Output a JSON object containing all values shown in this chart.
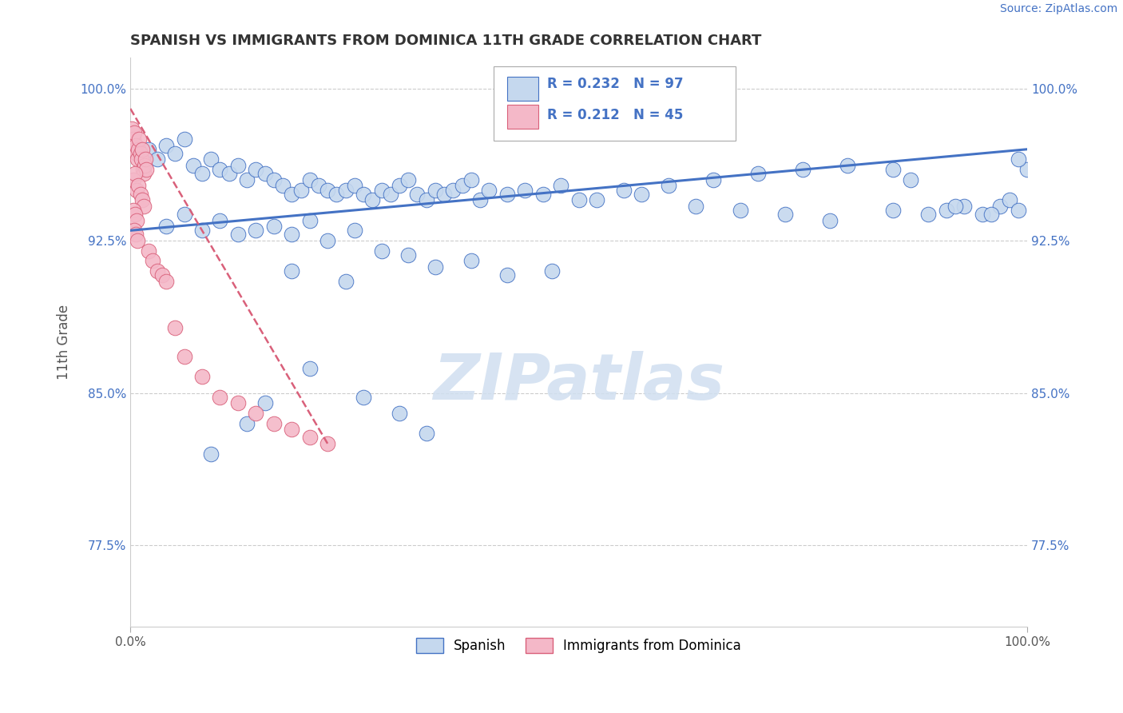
{
  "title": "SPANISH VS IMMIGRANTS FROM DOMINICA 11TH GRADE CORRELATION CHART",
  "source": "Source: ZipAtlas.com",
  "ylabel": "11th Grade",
  "xlim": [
    0.0,
    1.0
  ],
  "ylim": [
    0.735,
    1.015
  ],
  "xtick_positions": [
    0.0,
    1.0
  ],
  "xtick_labels": [
    "0.0%",
    "100.0%"
  ],
  "ytick_values": [
    0.775,
    0.85,
    0.925,
    1.0
  ],
  "ytick_labels": [
    "77.5%",
    "85.0%",
    "92.5%",
    "100.0%"
  ],
  "R_spanish": 0.232,
  "N_spanish": 97,
  "R_dominica": 0.212,
  "N_dominica": 45,
  "blue_fill": "#c5d8ee",
  "blue_edge": "#4472c4",
  "pink_fill": "#f4b8c8",
  "pink_edge": "#d9607a",
  "blue_trend": "#4472c4",
  "pink_trend": "#d9607a",
  "grid_color": "#cccccc",
  "watermark_color": "#d0dff0",
  "legend_blue": "Spanish",
  "legend_pink": "Immigrants from Dominica",
  "spanish_x": [
    0.02,
    0.03,
    0.04,
    0.05,
    0.06,
    0.07,
    0.08,
    0.09,
    0.1,
    0.11,
    0.12,
    0.13,
    0.14,
    0.15,
    0.16,
    0.17,
    0.18,
    0.19,
    0.2,
    0.21,
    0.22,
    0.23,
    0.24,
    0.25,
    0.26,
    0.27,
    0.28,
    0.29,
    0.3,
    0.31,
    0.32,
    0.33,
    0.34,
    0.35,
    0.36,
    0.37,
    0.38,
    0.39,
    0.4,
    0.42,
    0.44,
    0.46,
    0.48,
    0.5,
    0.55,
    0.6,
    0.65,
    0.7,
    0.75,
    0.8,
    0.85,
    0.87,
    0.89,
    0.91,
    0.93,
    0.95,
    0.97,
    0.98,
    0.99,
    1.0,
    0.04,
    0.06,
    0.08,
    0.1,
    0.12,
    0.14,
    0.16,
    0.18,
    0.2,
    0.22,
    0.25,
    0.28,
    0.31,
    0.34,
    0.38,
    0.42,
    0.47,
    0.18,
    0.24,
    0.3,
    0.2,
    0.26,
    0.33,
    0.15,
    0.09,
    0.13,
    0.52,
    0.57,
    0.63,
    0.68,
    0.73,
    0.78,
    0.85,
    0.92,
    0.96,
    0.99
  ],
  "spanish_y": [
    0.97,
    0.965,
    0.972,
    0.968,
    0.975,
    0.962,
    0.958,
    0.965,
    0.96,
    0.958,
    0.962,
    0.955,
    0.96,
    0.958,
    0.955,
    0.952,
    0.948,
    0.95,
    0.955,
    0.952,
    0.95,
    0.948,
    0.95,
    0.952,
    0.948,
    0.945,
    0.95,
    0.948,
    0.952,
    0.955,
    0.948,
    0.945,
    0.95,
    0.948,
    0.95,
    0.952,
    0.955,
    0.945,
    0.95,
    0.948,
    0.95,
    0.948,
    0.952,
    0.945,
    0.95,
    0.952,
    0.955,
    0.958,
    0.96,
    0.962,
    0.96,
    0.955,
    0.938,
    0.94,
    0.942,
    0.938,
    0.942,
    0.945,
    0.94,
    0.96,
    0.932,
    0.938,
    0.93,
    0.935,
    0.928,
    0.93,
    0.932,
    0.928,
    0.935,
    0.925,
    0.93,
    0.92,
    0.918,
    0.912,
    0.915,
    0.908,
    0.91,
    0.91,
    0.905,
    0.84,
    0.862,
    0.848,
    0.83,
    0.845,
    0.82,
    0.835,
    0.945,
    0.948,
    0.942,
    0.94,
    0.938,
    0.935,
    0.94,
    0.942,
    0.938,
    0.965
  ],
  "dominica_x": [
    0.002,
    0.003,
    0.004,
    0.005,
    0.006,
    0.007,
    0.008,
    0.009,
    0.01,
    0.011,
    0.012,
    0.013,
    0.014,
    0.015,
    0.016,
    0.017,
    0.018,
    0.003,
    0.005,
    0.007,
    0.009,
    0.011,
    0.013,
    0.015,
    0.003,
    0.005,
    0.007,
    0.004,
    0.006,
    0.008,
    0.02,
    0.025,
    0.03,
    0.035,
    0.04,
    0.05,
    0.06,
    0.08,
    0.1,
    0.12,
    0.14,
    0.16,
    0.18,
    0.2,
    0.22
  ],
  "dominica_y": [
    0.98,
    0.975,
    0.978,
    0.97,
    0.972,
    0.968,
    0.965,
    0.97,
    0.975,
    0.968,
    0.965,
    0.97,
    0.96,
    0.958,
    0.962,
    0.965,
    0.96,
    0.955,
    0.958,
    0.95,
    0.952,
    0.948,
    0.945,
    0.942,
    0.94,
    0.938,
    0.935,
    0.93,
    0.928,
    0.925,
    0.92,
    0.915,
    0.91,
    0.908,
    0.905,
    0.882,
    0.868,
    0.858,
    0.848,
    0.845,
    0.84,
    0.835,
    0.832,
    0.828,
    0.825
  ],
  "blue_trend_x": [
    0.0,
    1.0
  ],
  "blue_trend_y": [
    0.93,
    0.97
  ],
  "pink_trend_x": [
    0.0,
    0.22
  ],
  "pink_trend_y": [
    0.99,
    0.825
  ]
}
